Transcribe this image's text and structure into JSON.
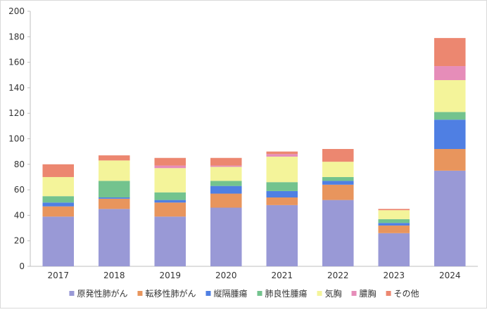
{
  "chart_data": {
    "type": "bar",
    "stacked": true,
    "title": "",
    "xlabel": "",
    "ylabel": "",
    "ylim": [
      0,
      200
    ],
    "yticks": [
      0,
      20,
      40,
      60,
      80,
      100,
      120,
      140,
      160,
      180,
      200
    ],
    "grid": false,
    "legend_position": "bottom",
    "categories": [
      "2017",
      "2018",
      "2019",
      "2020",
      "2021",
      "2022",
      "2023",
      "2024"
    ],
    "series": [
      {
        "name": "原発性肺がん",
        "color": "#9999d6",
        "values": [
          39,
          45,
          39,
          46,
          48,
          52,
          26,
          75
        ]
      },
      {
        "name": "転移性肺がん",
        "color": "#e8955d",
        "values": [
          8,
          8,
          11,
          11,
          6,
          12,
          6,
          17
        ]
      },
      {
        "name": "縦隔腫瘍",
        "color": "#4f7fe3",
        "values": [
          3,
          1,
          2,
          6,
          5,
          3,
          2,
          23
        ]
      },
      {
        "name": "肺良性腫瘍",
        "color": "#73c38e",
        "values": [
          5,
          13,
          6,
          4,
          7,
          3,
          3,
          6
        ]
      },
      {
        "name": "気胸",
        "color": "#f4f49a",
        "values": [
          15,
          16,
          19,
          11,
          20,
          12,
          7,
          25
        ]
      },
      {
        "name": "膿胸",
        "color": "#e68db9",
        "values": [
          0,
          0,
          2,
          1,
          2,
          0,
          0,
          11
        ]
      },
      {
        "name": "その他",
        "color": "#ec8770",
        "values": [
          10,
          4,
          6,
          6,
          2,
          10,
          1,
          22
        ]
      }
    ]
  }
}
